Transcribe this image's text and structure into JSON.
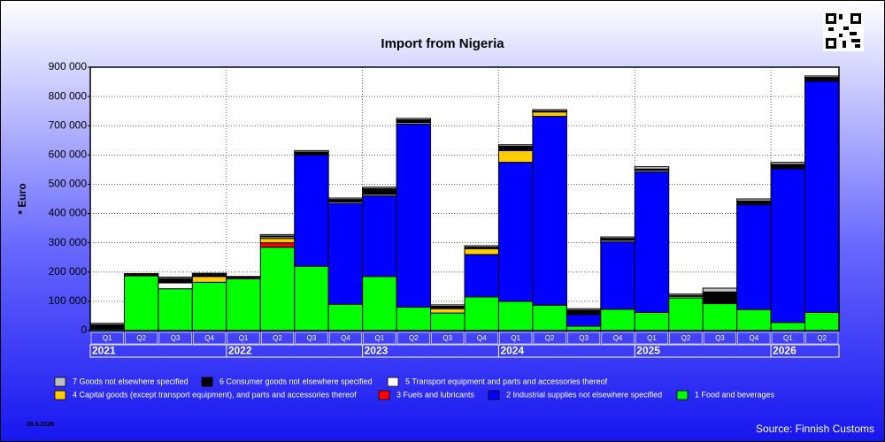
{
  "chart_data": {
    "type": "stacked_bar",
    "title": "Import from Nigeria",
    "y_label": "* Euro",
    "categories": [
      "Q1",
      "Q2",
      "Q3",
      "Q4",
      "Q1",
      "Q2",
      "Q3",
      "Q4",
      "Q1",
      "Q2",
      "Q3",
      "Q4",
      "Q1",
      "Q2",
      "Q3",
      "Q4",
      "Q1",
      "Q2",
      "Q3",
      "Q4",
      "Q1",
      "Q2"
    ],
    "years": [
      "2021",
      "2022",
      "2023",
      "2024",
      "2025",
      "2026"
    ],
    "series": [
      {
        "name": "1 Food and beverages",
        "color": "#00ff00",
        "values": [
          5000,
          187000,
          143000,
          165000,
          177000,
          285000,
          220000,
          90000,
          185000,
          80000,
          60000,
          115000,
          100000,
          87000,
          15000,
          73000,
          62000,
          112000,
          92000,
          72000,
          28000,
          62000
        ]
      },
      {
        "name": "2 Industrial supplies not elsewhere specified",
        "color": "#0000ff",
        "values": [
          3000,
          0,
          0,
          0,
          0,
          0,
          380000,
          345000,
          275000,
          625000,
          0,
          145000,
          475000,
          645000,
          40000,
          230000,
          480000,
          0,
          0,
          358000,
          525000,
          790000
        ]
      },
      {
        "name": "3 Fuels and lubricants",
        "color": "#ff0000",
        "values": [
          0,
          0,
          0,
          0,
          0,
          15000,
          0,
          0,
          0,
          0,
          0,
          0,
          0,
          0,
          0,
          0,
          0,
          0,
          0,
          0,
          0,
          0
        ]
      },
      {
        "name": "4 Capital goods (except transport equipment), and parts and accessories thereof",
        "color": "#ffcc00",
        "values": [
          0,
          0,
          0,
          20000,
          0,
          15000,
          0,
          0,
          0,
          0,
          15000,
          20000,
          40000,
          15000,
          0,
          0,
          0,
          0,
          0,
          0,
          0,
          0
        ]
      },
      {
        "name": "5  Transport equipment and parts and accessories thereof",
        "color": "#ffffff",
        "values": [
          2000,
          0,
          20000,
          0,
          0,
          5000,
          0,
          5000,
          5000,
          5000,
          3000,
          0,
          0,
          3000,
          0,
          5000,
          5000,
          5000,
          0,
          0,
          0,
          3000
        ]
      },
      {
        "name": "6 Consumer goods not elsewhere specified",
        "color": "#000000",
        "values": [
          10000,
          5000,
          15000,
          8000,
          5000,
          3000,
          10000,
          8000,
          20000,
          10000,
          5000,
          5000,
          15000,
          0,
          15000,
          7000,
          5000,
          3000,
          40000,
          13000,
          15000,
          10000
        ]
      },
      {
        "name": "7 Goods not elsewhere specified",
        "color": "#c0c0c0",
        "values": [
          5000,
          3000,
          5000,
          3000,
          3000,
          5000,
          5000,
          5000,
          5000,
          5000,
          5000,
          5000,
          5000,
          5000,
          5000,
          5000,
          8000,
          5000,
          13000,
          7000,
          7000,
          5000
        ]
      }
    ],
    "ylim": [
      0,
      900000
    ],
    "yticks": [
      0,
      {
        "value": 100000,
        "label": "100 000"
      },
      {
        "value": 200000,
        "label": "200 000"
      },
      {
        "value": 300000,
        "label": "300 000"
      },
      {
        "value": 400000,
        "label": "400 000"
      },
      {
        "value": 500000,
        "label": "500 000"
      },
      {
        "value": 600000,
        "label": "600 000"
      },
      {
        "value": 700000,
        "label": "700 000"
      },
      {
        "value": 800000,
        "label": "800 000"
      },
      {
        "value": 900000,
        "label": "900 000"
      }
    ],
    "grid": true,
    "date": "28.8.2026",
    "source": "Source: Finnish Customs"
  }
}
